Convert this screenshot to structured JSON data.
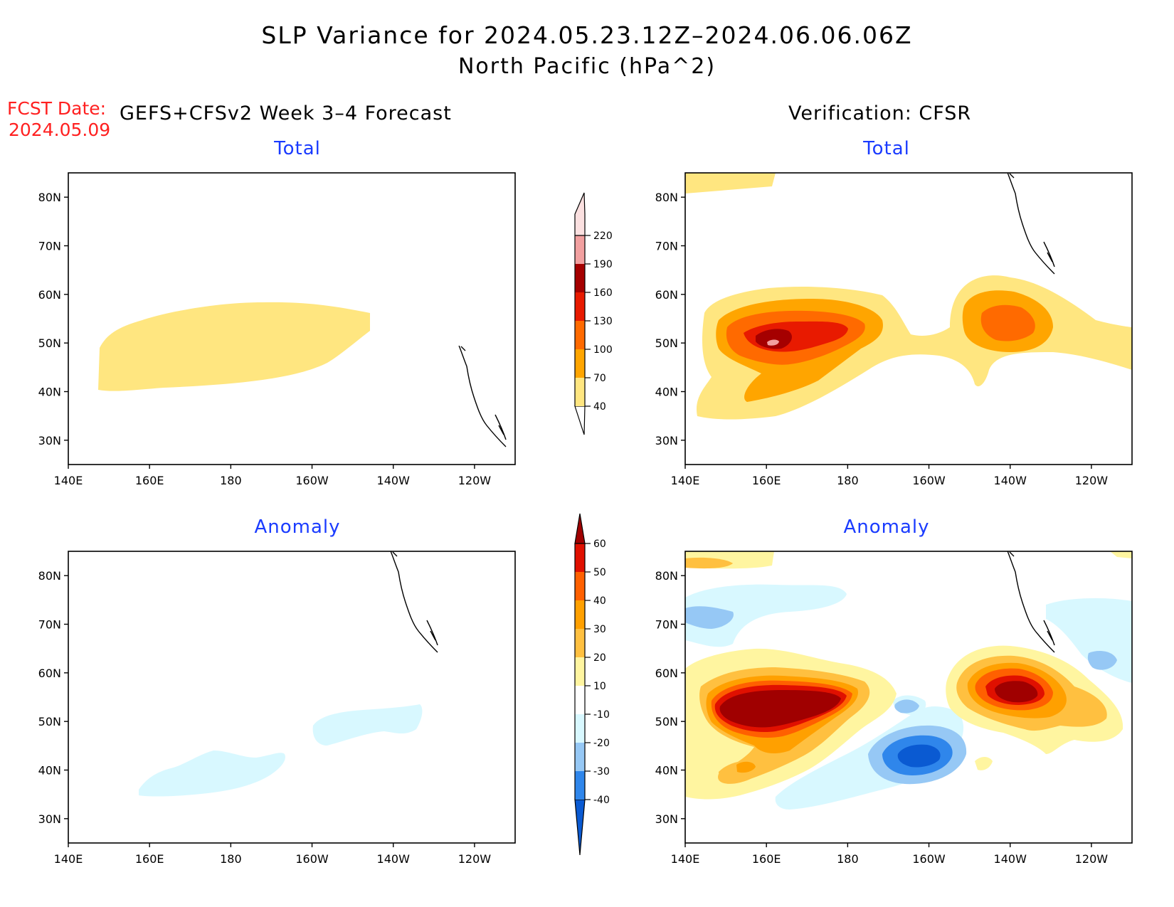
{
  "title": "SLP Variance for 2024.05.23.12Z–2024.06.06.06Z",
  "subtitle": "North Pacific (hPa^2)",
  "fcst_date_label": "FCST Date:",
  "fcst_date_value": "2024.05.09",
  "left_header": "GEFS+CFSv2 Week 3–4 Forecast",
  "right_header": "Verification: CFSR",
  "panels": {
    "fcst_total": "Total",
    "verif_total": "Total",
    "fcst_anomaly": "Anomaly",
    "verif_anomaly": "Anomaly"
  },
  "axes": {
    "lat_ticks": [
      "80N",
      "70N",
      "60N",
      "50N",
      "40N",
      "30N"
    ],
    "lon_ticks": [
      "140E",
      "160E",
      "180",
      "160W",
      "140W",
      "120W"
    ],
    "lat_range": [
      25,
      85
    ],
    "lon_range": [
      140,
      250
    ]
  },
  "total_colorbar": {
    "levels": [
      "40",
      "70",
      "100",
      "130",
      "160",
      "190",
      "220"
    ],
    "colors": [
      "#ffe680",
      "#ffa500",
      "#ff6a00",
      "#e81a00",
      "#a50000",
      "#f2a0a0",
      "#fbe0e0"
    ]
  },
  "anomaly_colorbar": {
    "levels": [
      "-40",
      "-30",
      "-20",
      "-10",
      "10",
      "20",
      "30",
      "40",
      "50",
      "60"
    ],
    "colors": [
      "#0a5ad2",
      "#2f86eb",
      "#96c8f5",
      "#d8f8ff",
      "#ffffff",
      "#fff5a0",
      "#ffc040",
      "#ffa000",
      "#ff6000",
      "#e01000",
      "#a00000"
    ]
  }
}
